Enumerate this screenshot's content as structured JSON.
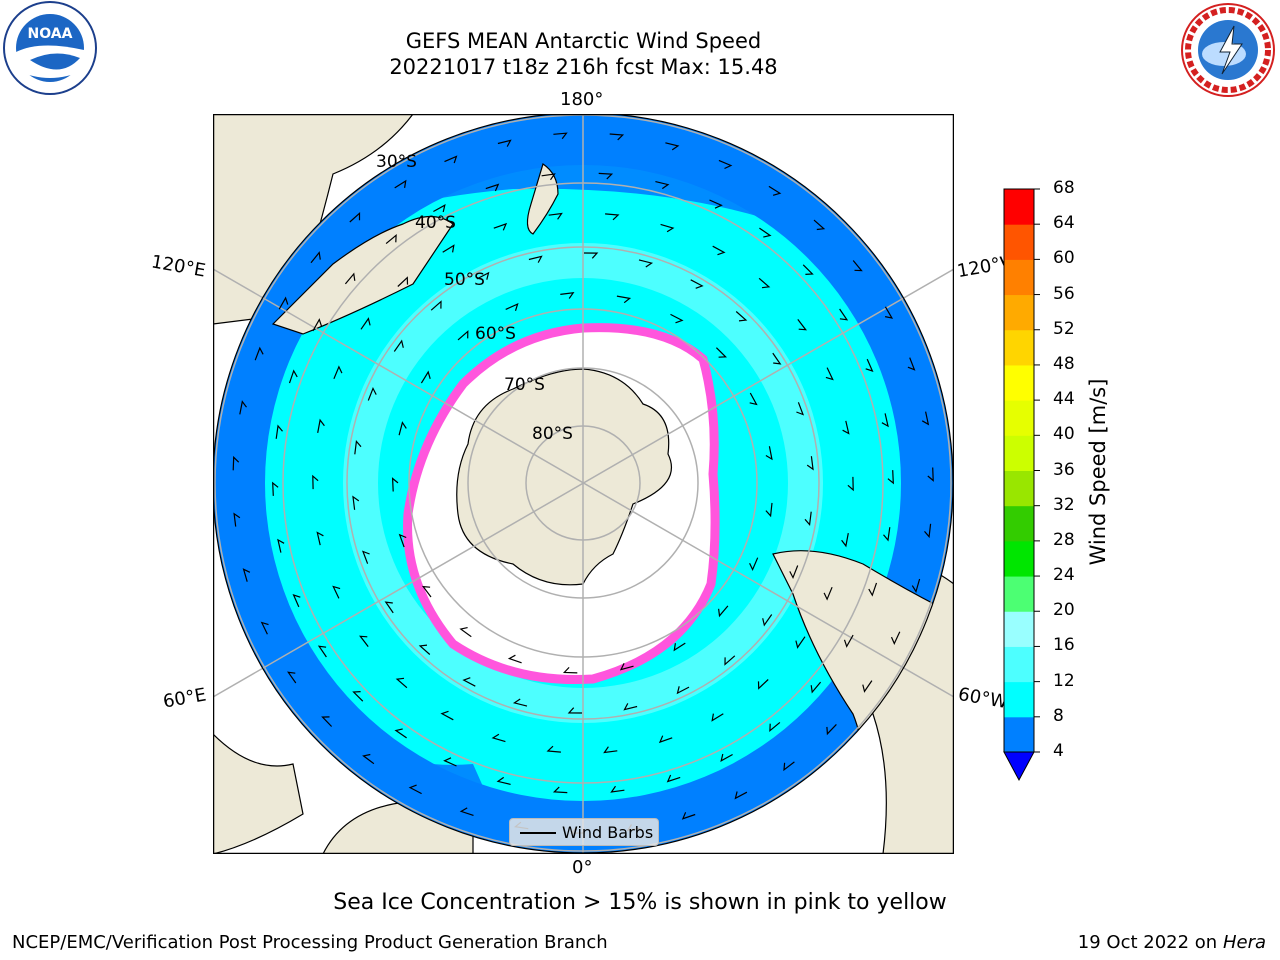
{
  "title": {
    "line1": "GEFS MEAN Antarctic Wind Speed",
    "line2": "20221017 t18z 216h fcst   Max: 15.48"
  },
  "map": {
    "projection": "south-polar-stereographic",
    "meridian_labels": {
      "top": "180°",
      "bottom": "0°",
      "upper_left": "120°E",
      "lower_left": "60°E",
      "upper_right": "120°W",
      "lower_right": "60°W"
    },
    "latitude_labels": [
      "30°S",
      "40°S",
      "50°S",
      "60°S",
      "70°S",
      "80°S"
    ],
    "legend_label": "Wind Barbs"
  },
  "colorbar": {
    "label": "Wind Speed [m/s]",
    "ticks": [
      "4",
      "8",
      "12",
      "16",
      "20",
      "24",
      "28",
      "32",
      "36",
      "40",
      "44",
      "48",
      "52",
      "56",
      "60",
      "64",
      "68"
    ],
    "colors": [
      "#0080ff",
      "#00ffff",
      "#4dffff",
      "#99ffff",
      "#4cff73",
      "#00e600",
      "#33cc00",
      "#99e600",
      "#ccff00",
      "#e6ff00",
      "#ffff00",
      "#ffd500",
      "#ffaa00",
      "#ff8000",
      "#ff5500",
      "#ff0000"
    ],
    "under_color": "#0000ff"
  },
  "caption": "Sea Ice Concentration > 15% is shown in pink to yellow",
  "footer": {
    "left": "NCEP/EMC/Verification Post Processing Product Generation Branch",
    "right_date": "19 Oct 2022 on ",
    "right_machine": "Hera"
  },
  "colors": {
    "land": "#ede9d7",
    "ocean_calm": "#0080ff",
    "ocean_moderate": "#00ffff",
    "ocean_strong": "#4dffff",
    "sea_ice": "#ff55dd",
    "grid": "#b0b0b0"
  },
  "logos": {
    "left": "NOAA",
    "left_ring": "NATIONAL OCEANIC AND ATMOSPHERIC ADMINISTRATION · U.S. DEPARTMENT OF COMMERCE",
    "right_ring": "NATIONAL WEATHER SERVICE"
  }
}
